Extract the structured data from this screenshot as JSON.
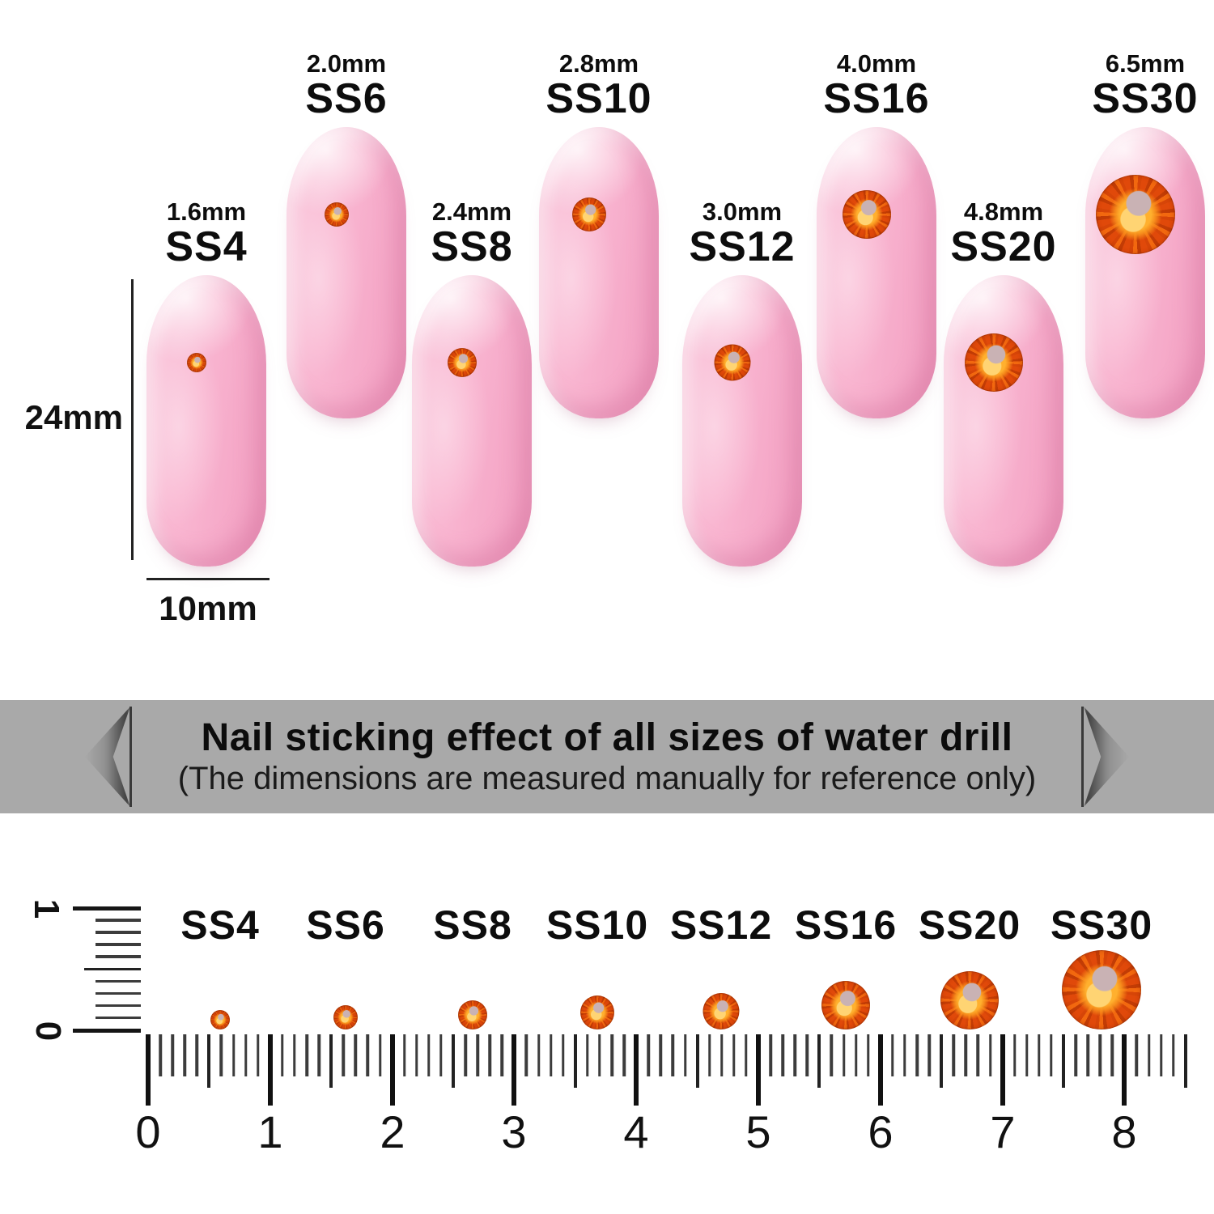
{
  "sizes": [
    {
      "label": "SS4",
      "diameter": "1.6mm",
      "mm": 1.6
    },
    {
      "label": "SS6",
      "diameter": "2.0mm",
      "mm": 2.0
    },
    {
      "label": "SS8",
      "diameter": "2.4mm",
      "mm": 2.4
    },
    {
      "label": "SS10",
      "diameter": "2.8mm",
      "mm": 2.8
    },
    {
      "label": "SS12",
      "diameter": "3.0mm",
      "mm": 3.0
    },
    {
      "label": "SS16",
      "diameter": "4.0mm",
      "mm": 4.0
    },
    {
      "label": "SS20",
      "diameter": "4.8mm",
      "mm": 4.8
    },
    {
      "label": "SS30",
      "diameter": "6.5mm",
      "mm": 6.5
    }
  ],
  "nail_dimensions": {
    "height_label": "24mm",
    "width_label": "10mm"
  },
  "banner": {
    "title": "Nail sticking effect of all sizes of water drill",
    "subtitle": "(The dimensions are measured manually for reference only)",
    "background": "#a9a9a9"
  },
  "ruler": {
    "horizontal_numbers": [
      "0",
      "1",
      "2",
      "3",
      "4",
      "5",
      "6",
      "7",
      "8"
    ],
    "vertical_numbers": [
      "1",
      "0"
    ]
  },
  "colors": {
    "nail_pink": "#f8b4d0",
    "gem_orange": "#e8540a",
    "gem_gold": "#ffd473",
    "gem_highlight": "#c9b2b4",
    "banner_gray": "#a9a9a9",
    "text": "#111111"
  }
}
